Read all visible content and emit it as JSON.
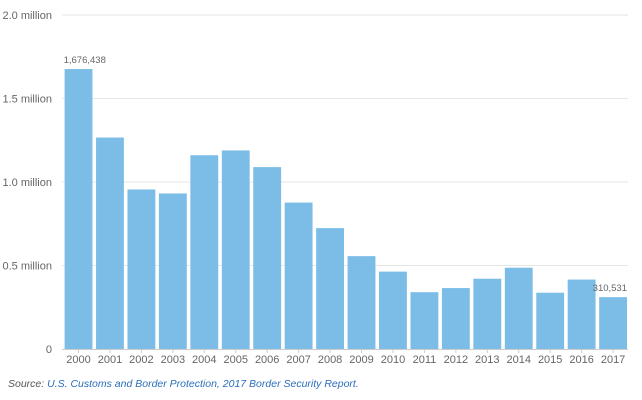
{
  "chart_data": {
    "type": "bar",
    "categories": [
      "2000",
      "2001",
      "2002",
      "2003",
      "2004",
      "2005",
      "2006",
      "2007",
      "2008",
      "2009",
      "2010",
      "2011",
      "2012",
      "2013",
      "2014",
      "2015",
      "2016",
      "2017"
    ],
    "values": [
      1676438,
      1266214,
      955310,
      931557,
      1160395,
      1189075,
      1089092,
      876704,
      723825,
      556041,
      463382,
      340252,
      364768,
      420789,
      486651,
      337117,
      415816,
      310531
    ],
    "ylim": [
      0,
      2000000
    ],
    "yticks": [
      {
        "value": 0,
        "label": "0"
      },
      {
        "value": 500000,
        "label": "0.5 million"
      },
      {
        "value": 1000000,
        "label": "1.0 million"
      },
      {
        "value": 1500000,
        "label": "1.5 million"
      },
      {
        "value": 2000000,
        "label": "2.0 million"
      }
    ],
    "data_labels": [
      {
        "index": 0,
        "text": "1,676,438"
      },
      {
        "index": 17,
        "text": "310,531"
      }
    ],
    "bar_color": "#7bbde6",
    "grid": true
  },
  "source": {
    "prefix": "Source:",
    "link_text": "U.S. Customs and Border Protection, 2017 Border Security Report."
  }
}
